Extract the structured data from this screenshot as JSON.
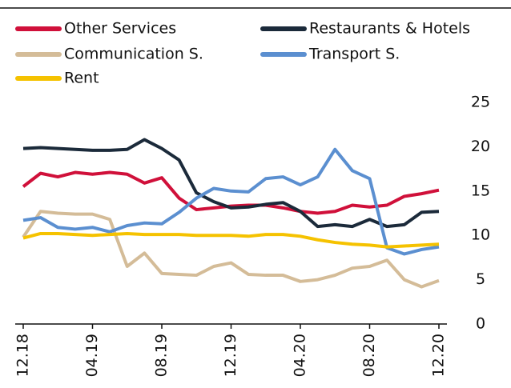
{
  "chart_data": {
    "type": "line",
    "categories": [
      "12.18",
      null,
      null,
      null,
      "04.19",
      null,
      null,
      null,
      "08.19",
      null,
      null,
      null,
      "12.19",
      null,
      null,
      null,
      "04.20",
      null,
      null,
      null,
      "08.20",
      null,
      null,
      null,
      "12.20"
    ],
    "series": [
      {
        "name": "Other Services",
        "color": "#d0103a",
        "values": [
          15.5,
          17.0,
          16.6,
          17.1,
          16.9,
          17.1,
          16.9,
          15.9,
          16.5,
          14.2,
          12.9,
          13.1,
          13.3,
          13.4,
          13.4,
          13.1,
          12.7,
          12.5,
          12.7,
          13.4,
          13.2,
          13.4,
          14.4,
          14.7,
          15.1
        ]
      },
      {
        "name": "Restaurants & Hotels",
        "color": "#1b2a3a",
        "values": [
          19.8,
          19.9,
          19.8,
          19.7,
          19.6,
          19.6,
          19.7,
          20.8,
          19.8,
          18.5,
          14.8,
          13.8,
          13.1,
          13.2,
          13.5,
          13.7,
          12.7,
          11.0,
          11.2,
          11.0,
          11.8,
          11.0,
          11.2,
          12.6,
          12.7
        ]
      },
      {
        "name": "Communication S.",
        "color": "#d4bc98",
        "values": [
          9.8,
          12.7,
          12.5,
          12.4,
          12.4,
          11.8,
          6.5,
          8.0,
          5.7,
          5.6,
          5.5,
          6.5,
          6.9,
          5.6,
          5.5,
          5.5,
          4.8,
          5.0,
          5.5,
          6.3,
          6.5,
          7.2,
          5.0,
          4.2,
          4.9
        ]
      },
      {
        "name": "Transport S.",
        "color": "#5b8fd0",
        "values": [
          11.7,
          12.0,
          10.9,
          10.7,
          10.9,
          10.4,
          11.1,
          11.4,
          11.3,
          12.6,
          14.2,
          15.3,
          15.0,
          14.9,
          16.4,
          16.6,
          15.7,
          16.6,
          19.7,
          17.3,
          16.4,
          8.6,
          7.9,
          8.4,
          8.7
        ]
      },
      {
        "name": "Rent",
        "color": "#f5c200",
        "values": [
          9.7,
          10.2,
          10.2,
          10.1,
          10.0,
          10.1,
          10.2,
          10.1,
          10.1,
          10.1,
          10.0,
          10.0,
          10.0,
          9.9,
          10.1,
          10.1,
          9.9,
          9.5,
          9.2,
          9.0,
          8.9,
          8.7,
          8.8,
          8.9,
          9.0
        ]
      }
    ],
    "ylim": [
      0,
      25
    ],
    "yticks": [
      0,
      5,
      10,
      15,
      20,
      25
    ],
    "yaxis_side": "right",
    "grid": false
  }
}
